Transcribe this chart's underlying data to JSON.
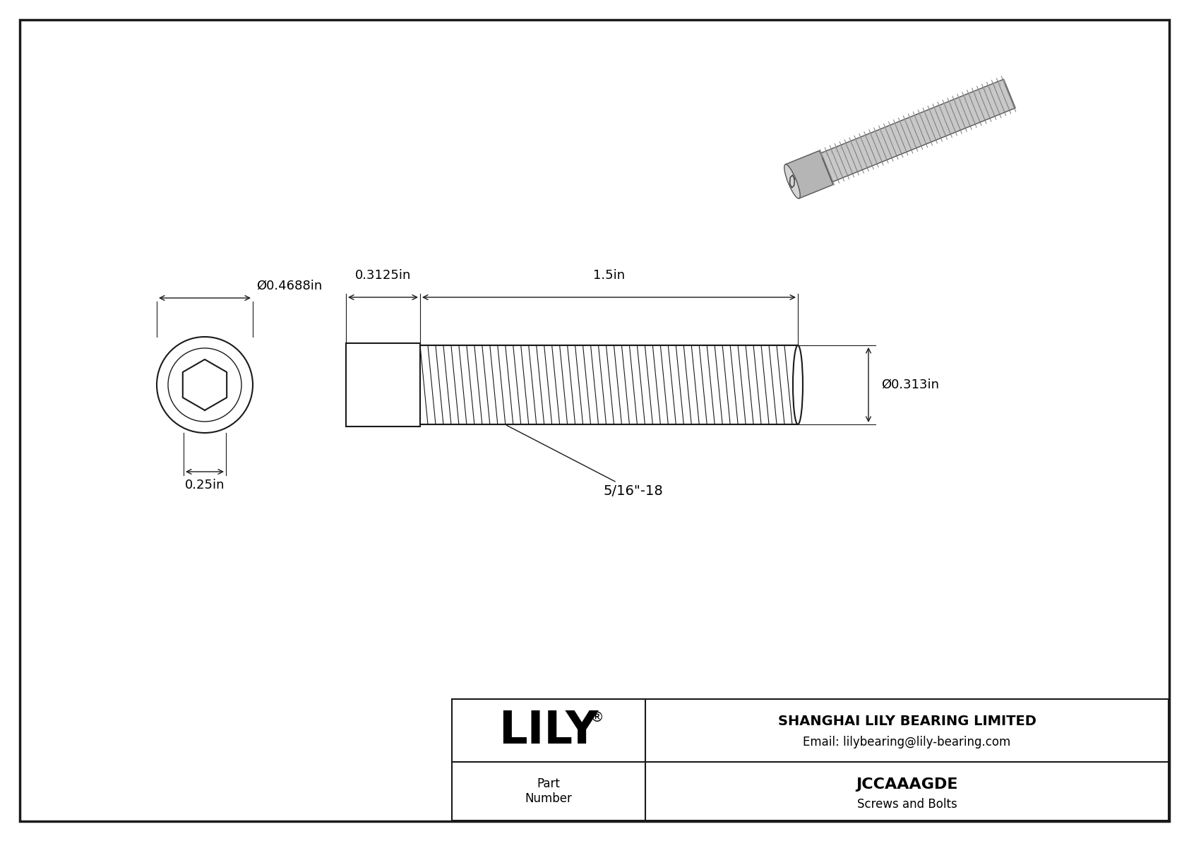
{
  "bg_color": "#ffffff",
  "line_color": "#1a1a1a",
  "title_company": "SHANGHAI LILY BEARING LIMITED",
  "title_email": "Email: lilybearing@lily-bearing.com",
  "part_number": "JCCAAAGDE",
  "part_category": "Screws and Bolts",
  "brand": "LILY",
  "dim_head_diameter": "Ø0.4688in",
  "dim_head_height": "0.25in",
  "dim_shaft_length": "1.5in",
  "dim_head_width": "0.3125in",
  "dim_shaft_diameter": "Ø0.313in",
  "dim_thread_label": "5/16\"-18",
  "screw_photo_color_body": "#c0c0c0",
  "screw_photo_color_thread": "#a0a0a0",
  "screw_photo_color_head": "#d0d0d0",
  "screw_photo_color_dark": "#808080"
}
